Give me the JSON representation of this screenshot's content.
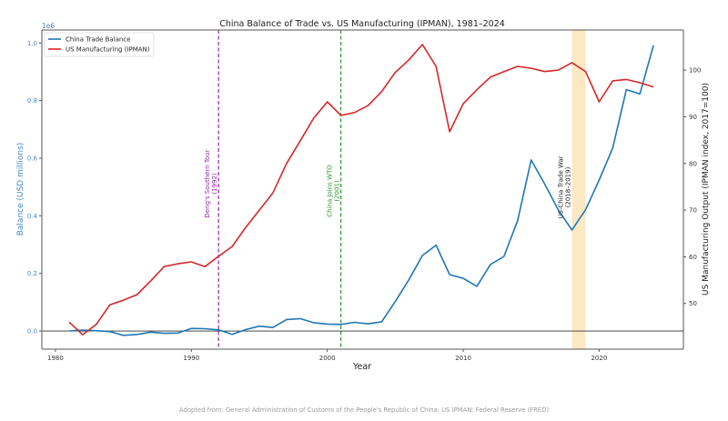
{
  "chart_data": {
    "type": "line",
    "title": "China Balance of Trade vs. US Manufacturing (IPMAN), 1981–2024",
    "xlabel": "Year",
    "ylabel_left": "Balance (USD millions)",
    "ylabel_right": "US Manufacturing Output (IPMAN index, 2017=100)",
    "left_offset_label": "1e6",
    "xlim": [
      1979,
      2026.2
    ],
    "ylim_left": [
      -0.063,
      1.045
    ],
    "ylim_right": [
      40.2,
      108.6
    ],
    "xticks": [
      1980,
      1990,
      2000,
      2010,
      2020
    ],
    "yticks_left": [
      "0.0",
      "0.2",
      "0.4",
      "0.6",
      "0.8",
      "1.0"
    ],
    "yticks_right": [
      50,
      60,
      70,
      80,
      90,
      100
    ],
    "grid": false,
    "legend_position": "top-left",
    "x": [
      1981,
      1982,
      1983,
      1984,
      1985,
      1986,
      1987,
      1988,
      1989,
      1990,
      1991,
      1992,
      1993,
      1994,
      1995,
      1996,
      1997,
      1998,
      1999,
      2000,
      2001,
      2002,
      2003,
      2004,
      2005,
      2006,
      2007,
      2008,
      2009,
      2010,
      2011,
      2012,
      2013,
      2014,
      2015,
      2016,
      2017,
      2018,
      2019,
      2020,
      2021,
      2022,
      2023,
      2024
    ],
    "series": [
      {
        "name": "China Trade Balance",
        "axis": "left",
        "color": "#1f77b4",
        "values": [
          0.0,
          0.003,
          0.001,
          -0.002,
          -0.015,
          -0.012,
          -0.004,
          -0.008,
          -0.007,
          0.009,
          0.008,
          0.004,
          -0.012,
          0.005,
          0.017,
          0.012,
          0.04,
          0.043,
          0.029,
          0.024,
          0.023,
          0.03,
          0.025,
          0.032,
          0.102,
          0.178,
          0.262,
          0.298,
          0.196,
          0.183,
          0.155,
          0.231,
          0.259,
          0.383,
          0.594,
          0.51,
          0.42,
          0.351,
          0.421,
          0.524,
          0.635,
          0.838,
          0.823,
          0.992
        ]
      },
      {
        "name": "US Manufacturing (IPMAN)",
        "axis": "right",
        "color": "#d62728",
        "values": [
          46.0,
          43.3,
          45.5,
          49.7,
          50.7,
          51.9,
          54.8,
          57.9,
          58.5,
          58.9,
          57.9,
          60.1,
          62.2,
          66.3,
          70.0,
          73.7,
          80.0,
          84.8,
          89.7,
          93.2,
          90.3,
          90.9,
          92.4,
          95.4,
          99.5,
          102.2,
          105.5,
          100.8,
          86.8,
          92.8,
          95.8,
          98.5,
          99.7,
          100.8,
          100.4,
          99.7,
          100.0,
          101.6,
          99.7,
          93.2,
          97.7,
          98.0,
          97.3,
          96.4
        ]
      }
    ],
    "annotations": [
      {
        "type": "vline",
        "x": 1992,
        "color": "#9424a8",
        "lines": [
          "Deng's Southern Tour",
          "(1992)"
        ]
      },
      {
        "type": "vline",
        "x": 2001,
        "color": "#2a962a",
        "lines": [
          "China Joins WTO",
          "(2001)"
        ]
      },
      {
        "type": "span",
        "x0": 2018,
        "x1": 2019,
        "color": "#fde8c4",
        "lines": [
          "US-China Trade War",
          "(2018–2019)"
        ]
      }
    ],
    "hline_left": 0
  },
  "footer": "Adopted from: General Administration of Customs of the People's Republic of China; US IPMAN: Federal Reserve (FRED)"
}
